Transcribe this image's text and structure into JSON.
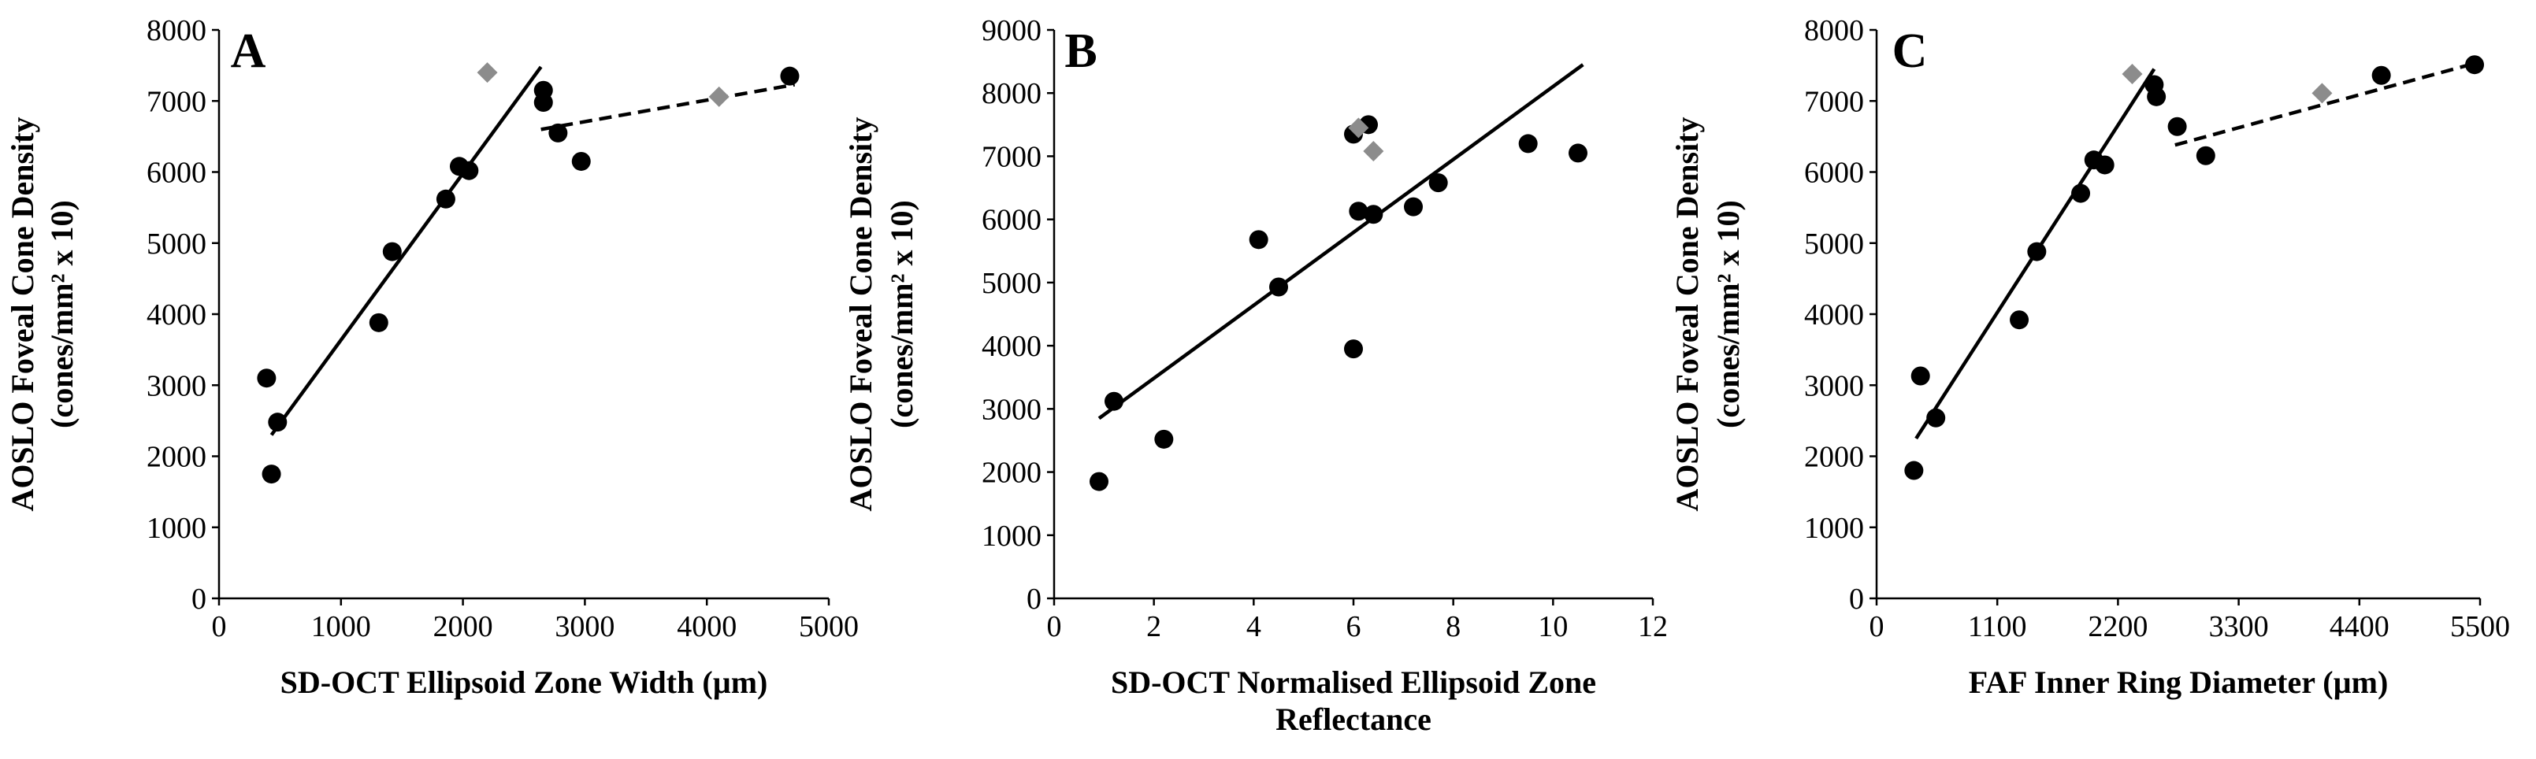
{
  "chart_data": [
    {
      "type": "scatter",
      "panel_label": "A",
      "xlabel": "SD-OCT Ellipsoid Zone Width (µm)",
      "xlabel_lines": [
        "SD-OCT Ellipsoid Zone Width (µm)"
      ],
      "ylabel_lines": [
        "AOSLO Foveal Cone Density",
        "(cones/mm² x 10)"
      ],
      "xlim": [
        0,
        5000
      ],
      "ylim": [
        0,
        8000
      ],
      "xticks": [
        0,
        1000,
        2000,
        3000,
        4000,
        5000
      ],
      "yticks": [
        0,
        1000,
        2000,
        3000,
        4000,
        5000,
        6000,
        7000,
        8000
      ],
      "series": [
        {
          "name": "black-points",
          "color": "#000000",
          "marker": "circle",
          "points": [
            [
              390,
              3100
            ],
            [
              430,
              1750
            ],
            [
              480,
              2480
            ],
            [
              1420,
              4880
            ],
            [
              1310,
              3880
            ],
            [
              1860,
              5620
            ],
            [
              1970,
              6080
            ],
            [
              2050,
              6020
            ],
            [
              2660,
              7150
            ],
            [
              2660,
              6980
            ],
            [
              2780,
              6550
            ],
            [
              2970,
              6150
            ],
            [
              4680,
              7350
            ]
          ]
        },
        {
          "name": "grey-points",
          "color": "#8c8c8c",
          "marker": "diamond",
          "points": [
            [
              2200,
              7400
            ],
            [
              4100,
              7060
            ]
          ]
        }
      ],
      "trendlines": [
        {
          "style": "solid",
          "from": [
            430,
            2300
          ],
          "to": [
            2640,
            7480
          ]
        },
        {
          "style": "dashed",
          "from": [
            2640,
            6600
          ],
          "to": [
            4720,
            7230
          ]
        }
      ]
    },
    {
      "type": "scatter",
      "panel_label": "B",
      "xlabel": "SD-OCT Normalised Ellipsoid Zone Reflectance",
      "xlabel_lines": [
        "SD-OCT Normalised Ellipsoid Zone",
        "Reflectance"
      ],
      "ylabel_lines": [
        "AOSLO Foveal Cone Density",
        "(cones/mm² x 10)"
      ],
      "xlim": [
        0,
        12
      ],
      "ylim": [
        0,
        9000
      ],
      "xticks": [
        0,
        2,
        4,
        6,
        8,
        10,
        12
      ],
      "yticks": [
        0,
        1000,
        2000,
        3000,
        4000,
        5000,
        6000,
        7000,
        8000,
        9000
      ],
      "series": [
        {
          "name": "black-points",
          "color": "#000000",
          "marker": "circle",
          "points": [
            [
              0.9,
              1850
            ],
            [
              1.2,
              3120
            ],
            [
              2.2,
              2520
            ],
            [
              4.1,
              5680
            ],
            [
              4.5,
              4930
            ],
            [
              6.0,
              3950
            ],
            [
              6.0,
              7350
            ],
            [
              6.1,
              6130
            ],
            [
              6.3,
              7500
            ],
            [
              6.4,
              6080
            ],
            [
              7.2,
              6200
            ],
            [
              7.7,
              6580
            ],
            [
              9.5,
              7200
            ],
            [
              10.5,
              7050
            ]
          ]
        },
        {
          "name": "grey-points",
          "color": "#8c8c8c",
          "marker": "diamond",
          "points": [
            [
              6.1,
              7450
            ],
            [
              6.4,
              7080
            ]
          ]
        }
      ],
      "trendlines": [
        {
          "style": "solid",
          "from": [
            0.9,
            2850
          ],
          "to": [
            10.6,
            8450
          ]
        }
      ]
    },
    {
      "type": "scatter",
      "panel_label": "C",
      "xlabel": "FAF Inner Ring Diameter (µm)",
      "xlabel_lines": [
        "FAF Inner Ring Diameter (µm)"
      ],
      "ylabel_lines": [
        "AOSLO Foveal Cone Density",
        "(cones/mm² x 10)"
      ],
      "xlim": [
        0,
        5500
      ],
      "ylim": [
        0,
        8000
      ],
      "xticks": [
        0,
        1100,
        2200,
        3300,
        4400,
        5500
      ],
      "yticks": [
        0,
        1000,
        2000,
        3000,
        4000,
        5000,
        6000,
        7000,
        8000
      ],
      "series": [
        {
          "name": "black-points",
          "color": "#000000",
          "marker": "circle",
          "points": [
            [
              340,
              1800
            ],
            [
              400,
              3130
            ],
            [
              540,
              2540
            ],
            [
              1300,
              3920
            ],
            [
              1460,
              4880
            ],
            [
              1860,
              5700
            ],
            [
              1980,
              6170
            ],
            [
              2080,
              6100
            ],
            [
              2530,
              7230
            ],
            [
              2550,
              7060
            ],
            [
              2740,
              6640
            ],
            [
              3000,
              6230
            ],
            [
              4600,
              7360
            ],
            [
              5450,
              7510
            ]
          ]
        },
        {
          "name": "grey-points",
          "color": "#8c8c8c",
          "marker": "diamond",
          "points": [
            [
              2330,
              7380
            ],
            [
              4060,
              7110
            ]
          ]
        }
      ],
      "trendlines": [
        {
          "style": "solid",
          "from": [
            360,
            2250
          ],
          "to": [
            2530,
            7450
          ]
        },
        {
          "style": "dashed",
          "from": [
            2720,
            6380
          ],
          "to": [
            5500,
            7550
          ]
        }
      ]
    }
  ]
}
